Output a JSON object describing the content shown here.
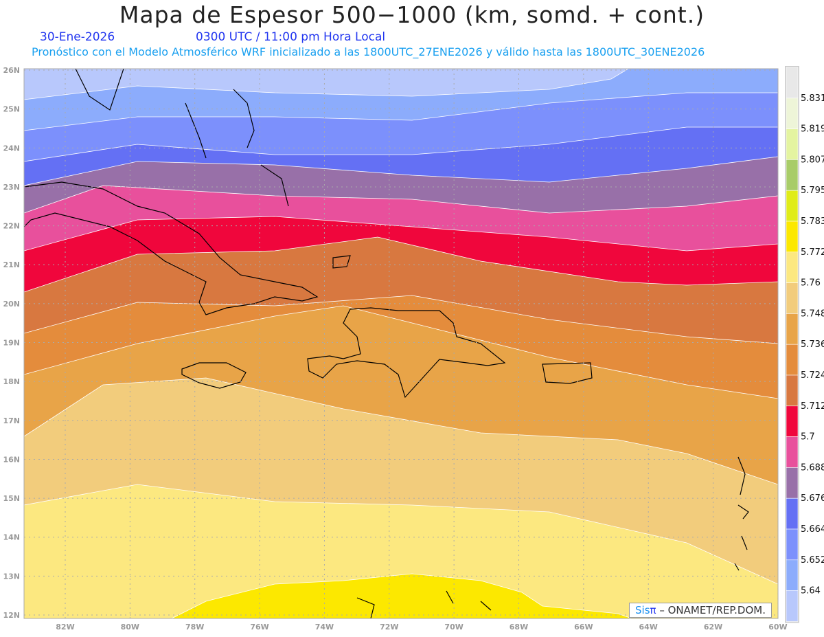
{
  "title": "Mapa de Espesor 500−1000 (km, somd. + cont.)",
  "date": "30-Ene-2026",
  "time": "0300 UTC / 11:00 pm Hora Local",
  "subtitle": "Pronóstico con el Modelo Atmosférico WRF inicializado a las 1800UTC_27ENE2026 y válido hasta las  1800UTC_30ENE2026",
  "credit": {
    "brand": "Sis",
    "pi": "π",
    "rest": " –  ONAMET/REP.DOM."
  },
  "lat_labels": [
    "12N",
    "13N",
    "14N",
    "15N",
    "16N",
    "17N",
    "18N",
    "19N",
    "20N",
    "21N",
    "22N",
    "23N",
    "24N",
    "25N",
    "26N"
  ],
  "lon_labels": [
    "82W",
    "80W",
    "78W",
    "76W",
    "74W",
    "72W",
    "70W",
    "68W",
    "66W",
    "64W",
    "62W",
    "60W"
  ],
  "colorbar": {
    "labels": [
      "5.831",
      "5.819",
      "5.807",
      "5.795",
      "5.783",
      "5.772",
      "5.76",
      "5.748",
      "5.736",
      "5.724",
      "5.712",
      "5.7",
      "5.688",
      "5.676",
      "5.664",
      "5.652",
      "5.64"
    ],
    "colors": [
      "#e8e8e8",
      "#eef5d8",
      "#e4f4a0",
      "#a8cc68",
      "#e0ec18",
      "#fce800",
      "#fce880",
      "#f2cc7c",
      "#e8a448",
      "#e48c3c",
      "#d87840",
      "#f0063c",
      "#e8509c",
      "#9870a8",
      "#6470f4",
      "#7c90fc",
      "#8cacfc",
      "#b8c8fc"
    ]
  }
}
